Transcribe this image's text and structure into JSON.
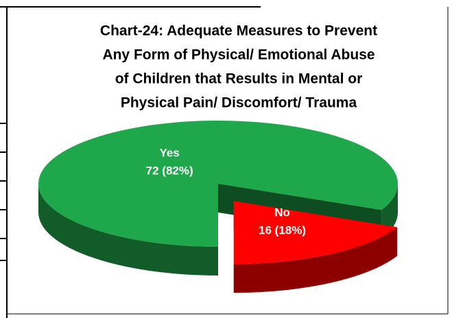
{
  "chart_data": {
    "type": "pie3d",
    "title": [
      "Chart-24: Adequate Measures to Prevent",
      "Any Form of Physical/ Emotional Abuse",
      "of Children that Results in Mental or",
      "Physical Pain/ Discomfort/ Trauma"
    ],
    "categories": [
      "Yes",
      "No"
    ],
    "values": [
      72,
      16
    ],
    "value_labels": [
      "72 (82%)",
      "16 (18%)"
    ],
    "colors": [
      "#1ea84b",
      "#ff0000"
    ]
  }
}
